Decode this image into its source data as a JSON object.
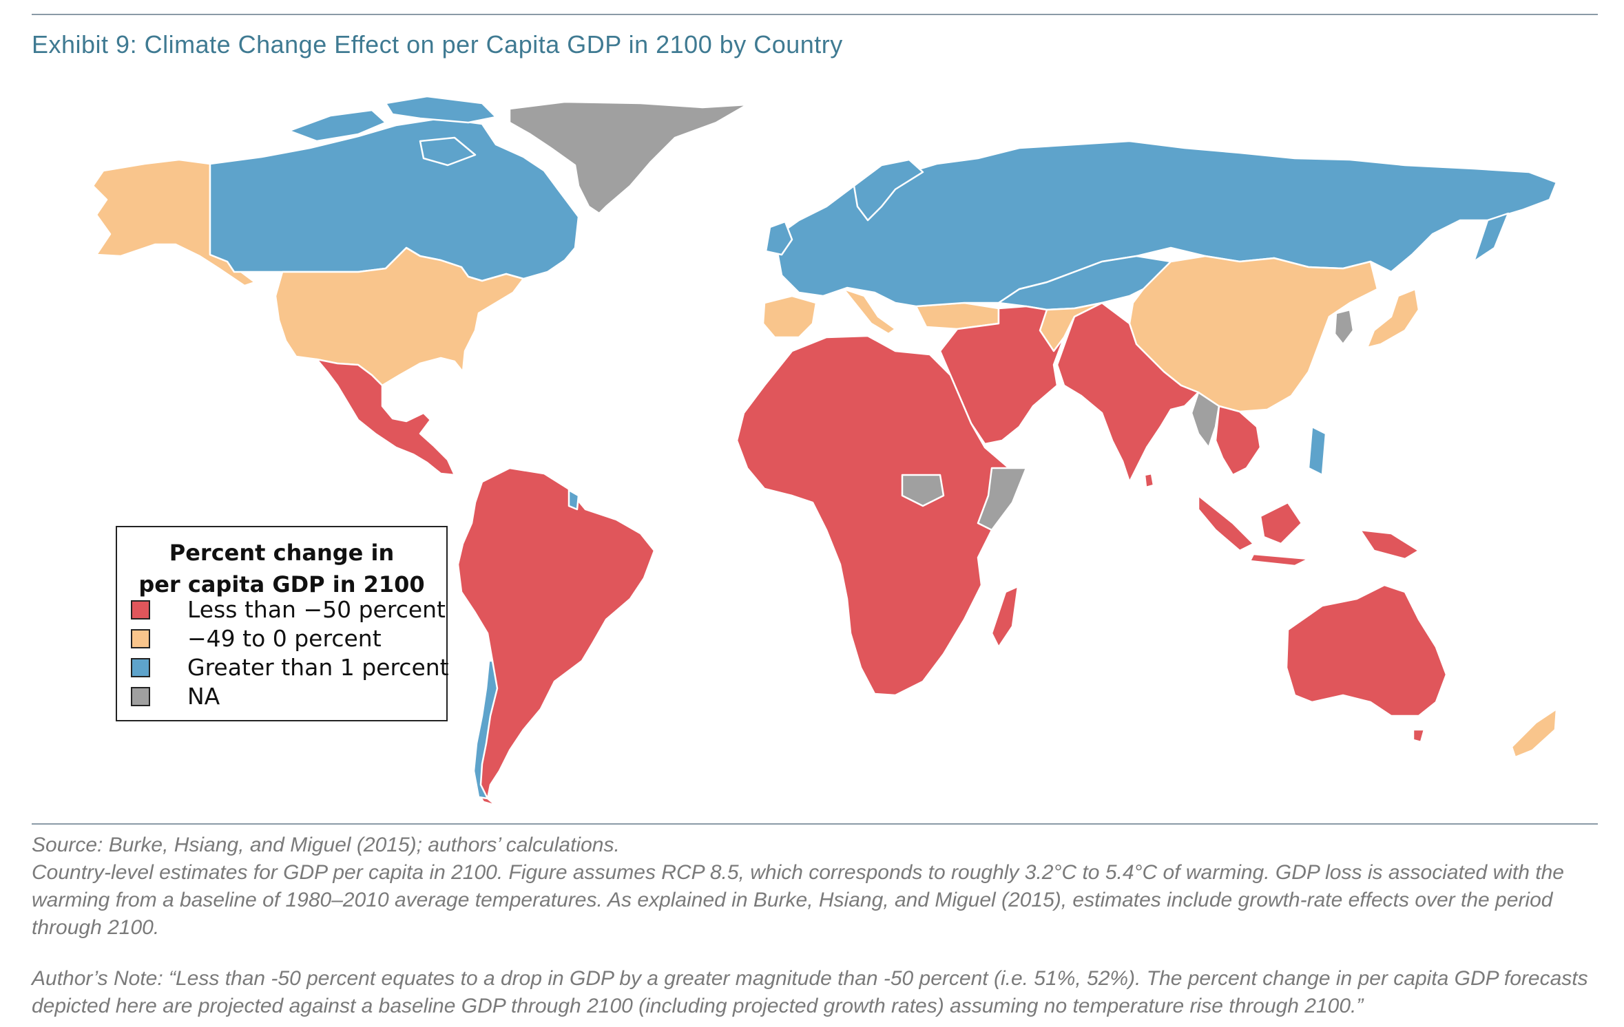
{
  "title": "Exhibit 9: Climate Change Effect on per Capita GDP in 2100 by Country",
  "colors": {
    "less_than_neg50": "#e0565b",
    "neg49_to_0": "#f9c58c",
    "greater_than_1": "#5ea3cb",
    "na": "#a0a0a0",
    "border": "#ffffff"
  },
  "legend": {
    "title_line1": "Percent change in",
    "title_line2": "per capita GDP in 2100",
    "items": [
      {
        "label": "Less than −50 percent",
        "color": "#e0565b"
      },
      {
        "label": "−49 to 0 percent",
        "color": "#f9c58c"
      },
      {
        "label": "Greater than 1 percent",
        "color": "#5ea3cb"
      },
      {
        "label": "NA",
        "color": "#a0a0a0"
      }
    ]
  },
  "notes": {
    "source": "Source: Burke, Hsiang, and Miguel (2015); authors’ calculations.",
    "description": "Country-level estimates for GDP per capita in 2100. Figure assumes RCP 8.5, which corresponds to roughly 3.2°C to 5.4°C of warming. GDP loss is associated with the warming from a baseline of 1980–2010 average temperatures. As explained in Burke, Hsiang, and Miguel (2015), estimates include growth-rate effects over the period through 2100.",
    "author_note": "Author’s Note: “Less than -50 percent equates to a drop in GDP by a greater magnitude than -50 percent (i.e. 51%, 52%).  The percent change in per capita GDP forecasts depicted here are projected against a baseline GDP through 2100 (including projected growth rates) assuming no temperature rise through 2100.”"
  }
}
